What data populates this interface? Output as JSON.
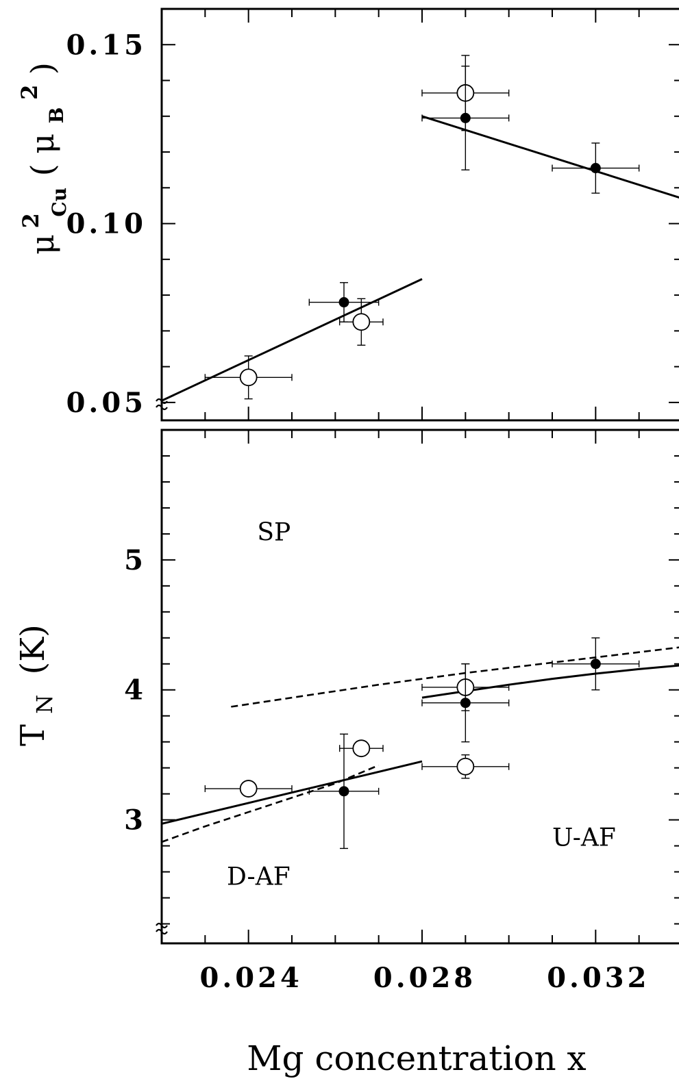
{
  "chart_data": [
    {
      "type": "scatter",
      "panel": "top",
      "ylabel": {
        "base": "μ",
        "base_sup": "2",
        "base_sub": "Cu",
        "paren_open": "(",
        "unit": "μ",
        "unit_sub": "B",
        "unit_sup": "2",
        "paren_close": ")"
      },
      "xlim": [
        0.022,
        0.034
      ],
      "ylim": [
        0.045,
        0.16
      ],
      "y_major_ticks": [
        0.05,
        0.1,
        0.15
      ],
      "y_tick_labels": [
        "0.05",
        "0.10",
        "0.15"
      ],
      "y_minor_step": 0.01,
      "x_minor_ticks": [
        0.023,
        0.024,
        0.025,
        0.026,
        0.027,
        0.028,
        0.029,
        0.03,
        0.031,
        0.032,
        0.033
      ],
      "axis_break": true,
      "series": [
        {
          "marker": "open",
          "points": [
            {
              "x": 0.024,
              "y": 0.057,
              "xerr": 0.001,
              "yerr": 0.006
            },
            {
              "x": 0.0266,
              "y": 0.0725,
              "xerr": 0.0005,
              "yerr": 0.0065
            },
            {
              "x": 0.029,
              "y": 0.1365,
              "xerr": 0.001,
              "yerr": 0.0105
            }
          ]
        },
        {
          "marker": "filled",
          "points": [
            {
              "x": 0.0262,
              "y": 0.078,
              "xerr": 0.0008,
              "yerr": 0.0055
            },
            {
              "x": 0.029,
              "y": 0.1295,
              "xerr": 0.001,
              "yerr": 0.0145
            },
            {
              "x": 0.032,
              "y": 0.1155,
              "xerr": 0.001,
              "yerr": 0.007
            }
          ]
        }
      ],
      "fit_lines": [
        {
          "style": "solid",
          "points": [
            [
              0.022,
              0.0505
            ],
            [
              0.028,
              0.0845
            ]
          ]
        },
        {
          "style": "solid",
          "points": [
            [
              0.028,
              0.13
            ],
            [
              0.034,
              0.107
            ]
          ]
        }
      ]
    },
    {
      "type": "scatter",
      "panel": "bottom",
      "ylabel": {
        "base": "T",
        "base_sub": "N",
        "unit": "(K)"
      },
      "xlabel": "Mg concentration  x",
      "xlim": [
        0.022,
        0.034
      ],
      "ylim": [
        2.05,
        6.0
      ],
      "x_major_ticks": [
        0.024,
        0.028,
        0.032
      ],
      "x_tick_labels": [
        "0.024",
        "0.028",
        "0.032"
      ],
      "x_minor_ticks": [
        0.023,
        0.024,
        0.025,
        0.026,
        0.027,
        0.028,
        0.029,
        0.03,
        0.031,
        0.032,
        0.033
      ],
      "y_major_ticks": [
        3,
        4,
        5
      ],
      "y_tick_labels": [
        "3",
        "4",
        "5"
      ],
      "y_minor_step": 0.2,
      "axis_break": true,
      "series": [
        {
          "marker": "open",
          "points": [
            {
              "x": 0.024,
              "y": 3.24,
              "xerr": 0.001,
              "yerr": 0
            },
            {
              "x": 0.0266,
              "y": 3.55,
              "xerr": 0.0005,
              "yerr": 0
            },
            {
              "x": 0.029,
              "y": 4.02,
              "xerr": 0.001,
              "yerr": 0.18
            },
            {
              "x": 0.029,
              "y": 3.41,
              "xerr": 0.001,
              "yerr": 0.09
            }
          ]
        },
        {
          "marker": "filled",
          "points": [
            {
              "x": 0.0262,
              "y": 3.22,
              "xerr": 0.0008,
              "yerr": 0.44
            },
            {
              "x": 0.029,
              "y": 3.9,
              "xerr": 0.001,
              "yerr": 0.3
            },
            {
              "x": 0.032,
              "y": 4.2,
              "xerr": 0.001,
              "yerr": 0.2
            }
          ]
        }
      ],
      "fit_lines": [
        {
          "style": "solid",
          "points": [
            [
              0.022,
              2.97
            ],
            [
              0.023,
              3.05
            ],
            [
              0.024,
              3.13
            ],
            [
              0.025,
              3.21
            ],
            [
              0.026,
              3.29
            ],
            [
              0.027,
              3.37
            ],
            [
              0.028,
              3.45
            ]
          ]
        },
        {
          "style": "solid",
          "points": [
            [
              0.028,
              3.94
            ],
            [
              0.029,
              3.99
            ],
            [
              0.03,
              4.04
            ],
            [
              0.031,
              4.085
            ],
            [
              0.032,
              4.125
            ],
            [
              0.033,
              4.16
            ],
            [
              0.034,
              4.19
            ]
          ]
        },
        {
          "style": "dashed",
          "points": [
            [
              0.022,
              2.83
            ],
            [
              0.023,
              2.95
            ],
            [
              0.024,
              3.06
            ],
            [
              0.025,
              3.17
            ],
            [
              0.026,
              3.28
            ],
            [
              0.027,
              3.42
            ]
          ]
        },
        {
          "style": "dashed",
          "points": [
            [
              0.0236,
              3.87
            ],
            [
              0.025,
              3.94
            ],
            [
              0.027,
              4.04
            ],
            [
              0.029,
              4.13
            ],
            [
              0.031,
              4.21
            ],
            [
              0.032,
              4.25
            ],
            [
              0.034,
              4.33
            ]
          ]
        }
      ],
      "annotations": [
        {
          "text": "SP",
          "x": 0.0242,
          "y": 5.15
        },
        {
          "text": "U-AF",
          "x": 0.031,
          "y": 2.8
        },
        {
          "text": "D-AF",
          "x": 0.0235,
          "y": 2.5
        }
      ]
    }
  ]
}
